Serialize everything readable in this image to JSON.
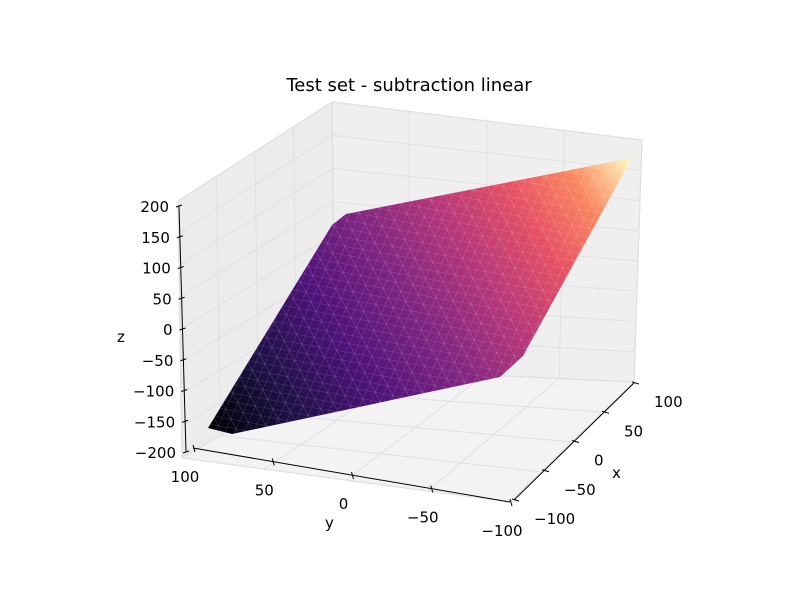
{
  "chart_data": {
    "type": "surface3d",
    "title": "Test set - subtraction linear",
    "xlabel": "x",
    "ylabel": "y",
    "zlabel": "z",
    "xlim": [
      -100,
      100
    ],
    "ylim": [
      -100,
      100
    ],
    "zlim": [
      -200,
      200
    ],
    "x_ticks": [
      -100,
      -50,
      0,
      50,
      100
    ],
    "y_ticks": [
      -100,
      -50,
      0,
      50,
      100
    ],
    "z_ticks": [
      -200,
      -150,
      -100,
      -50,
      0,
      50,
      100,
      150,
      200
    ],
    "x_tick_labels": [
      "−100",
      "−50",
      "0",
      "50",
      "100"
    ],
    "y_tick_labels": [
      "−100",
      "−50",
      "0",
      "50",
      "100"
    ],
    "z_tick_labels": [
      "−200",
      "−150",
      "−100",
      "−50",
      "0",
      "50",
      "100",
      "150",
      "200"
    ],
    "surface": {
      "formula": "z = x - y",
      "corners": [
        {
          "x": -100,
          "y": 100,
          "z": -200
        },
        {
          "x": 100,
          "y": 100,
          "z": 0
        },
        {
          "x": 100,
          "y": -100,
          "z": 200
        },
        {
          "x": -100,
          "y": -100,
          "z": 0
        }
      ],
      "colormap": "magma"
    },
    "grid": true,
    "pane_color": "#f2f2f2"
  }
}
